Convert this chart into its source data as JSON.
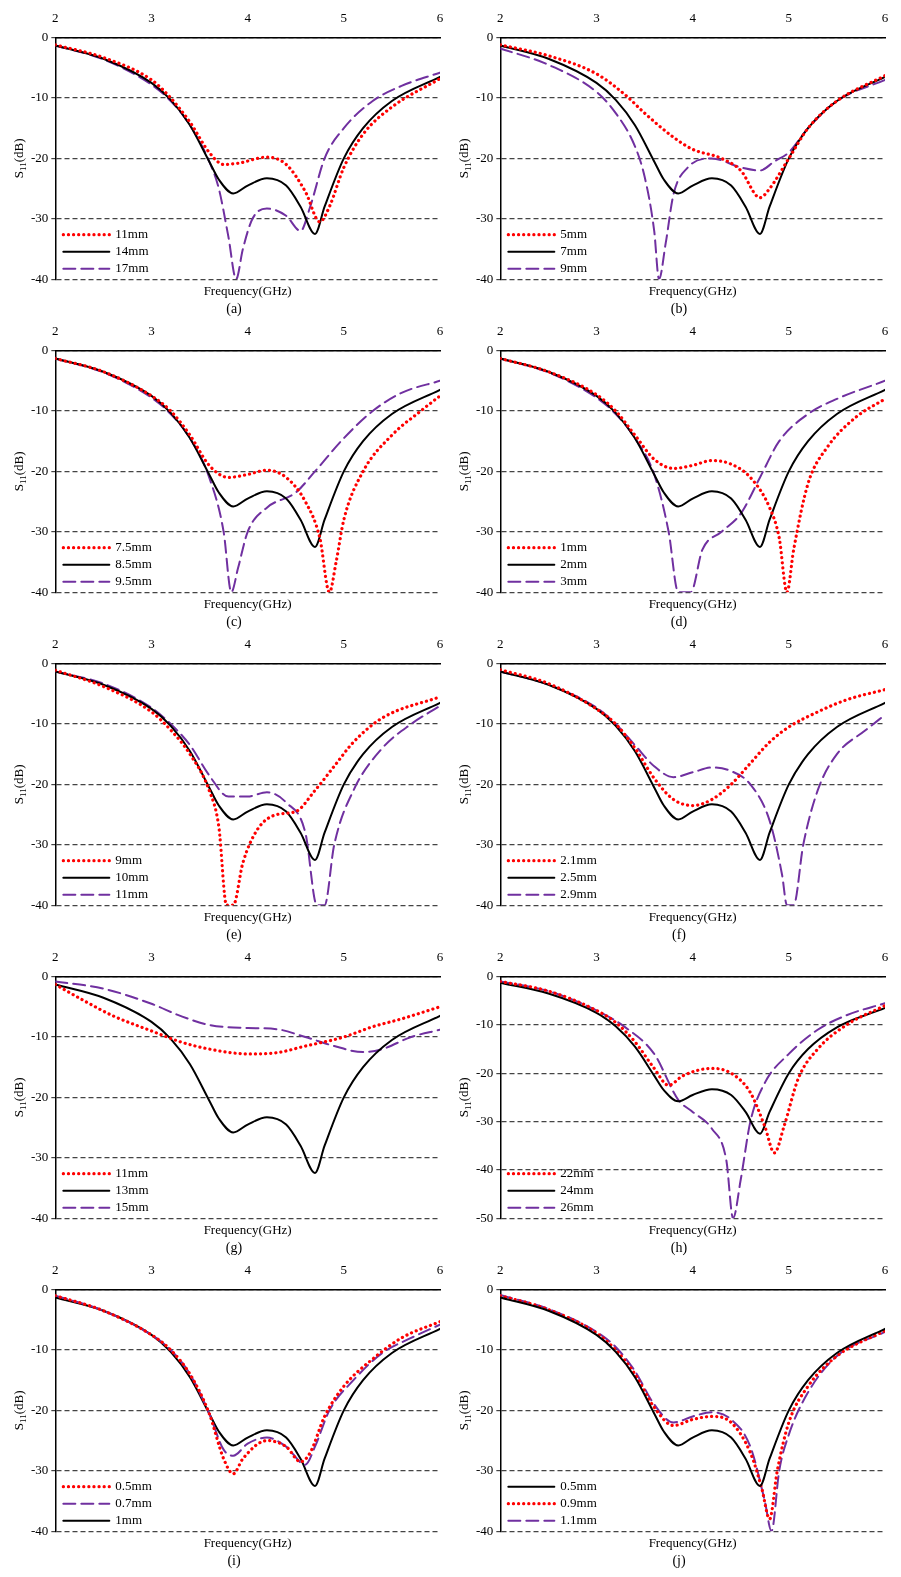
{
  "chart_data": [
    {
      "type": "line",
      "title": "(a)",
      "xlabel": "Frequency(GHz)",
      "ylabel": "S$_{11}$(dB)",
      "xlim": [
        2,
        6
      ],
      "xticks": [
        2,
        3,
        4,
        5,
        6
      ],
      "ylim": [
        -40,
        0
      ],
      "yticks": [
        0,
        -10,
        -20,
        -30,
        -40
      ],
      "grid": "y",
      "legend": "bottom left",
      "series": [
        {
          "name": "11mm",
          "color": "#ff0000",
          "line_style": "dotted",
          "x": [
            2,
            2.5,
            3,
            3.2,
            3.4,
            3.6,
            3.75,
            3.9,
            4.2,
            4.4,
            4.6,
            4.75,
            4.85,
            5,
            5.2,
            5.5,
            6
          ],
          "values": [
            -1.2,
            -3.3,
            -7,
            -10,
            -14,
            -19,
            -21,
            -20.8,
            -19.8,
            -21,
            -25.5,
            -30.5,
            -28,
            -21.5,
            -16,
            -11.5,
            -6.8
          ]
        },
        {
          "name": "14mm",
          "color": "#000000",
          "line_style": "solid",
          "x": [
            2,
            2.5,
            3,
            3.2,
            3.4,
            3.6,
            3.7,
            3.85,
            4,
            4.2,
            4.4,
            4.55,
            4.7,
            4.8,
            5,
            5.2,
            5.5,
            6
          ],
          "values": [
            -1.3,
            -3.5,
            -7.5,
            -10.3,
            -14.5,
            -20.5,
            -23.5,
            -25.8,
            -24.5,
            -23.3,
            -24.5,
            -28,
            -32.5,
            -28,
            -20,
            -15,
            -10.5,
            -6.5
          ]
        },
        {
          "name": "17mm",
          "color": "#7030a0",
          "line_style": "dashed",
          "x": [
            2,
            2.5,
            3,
            3.2,
            3.4,
            3.6,
            3.7,
            3.8,
            3.88,
            3.95,
            4.05,
            4.2,
            4.4,
            4.55,
            4.65,
            4.8,
            5,
            5.3,
            5.6,
            6
          ],
          "values": [
            -1.3,
            -3.6,
            -7.8,
            -10.5,
            -14.5,
            -20.5,
            -25,
            -33,
            -40,
            -35,
            -30,
            -28.3,
            -29.5,
            -32,
            -28,
            -20,
            -15,
            -10.5,
            -8,
            -5.8
          ]
        }
      ]
    },
    {
      "type": "line",
      "title": "(b)",
      "xlabel": "Frequency(GHz)",
      "ylabel": "S$_{11}$(dB)",
      "xlim": [
        2,
        6
      ],
      "xticks": [
        2,
        3,
        4,
        5,
        6
      ],
      "ylim": [
        -40,
        0
      ],
      "yticks": [
        0,
        -10,
        -20,
        -30,
        -40
      ],
      "grid": "y",
      "legend": "bottom left",
      "series": [
        {
          "name": "5mm",
          "color": "#ff0000",
          "line_style": "dotted",
          "x": [
            2,
            2.5,
            3,
            3.3,
            3.5,
            3.8,
            4,
            4.3,
            4.5,
            4.7,
            4.8,
            5,
            5.2,
            5.5,
            6
          ],
          "values": [
            -1.2,
            -3,
            -6,
            -9.5,
            -12.5,
            -16.5,
            -18.5,
            -20,
            -22,
            -26.5,
            -25,
            -20,
            -15,
            -10.5,
            -6.3
          ]
        },
        {
          "name": "7mm",
          "color": "#000000",
          "line_style": "solid",
          "x": [
            2,
            2.5,
            3,
            3.2,
            3.4,
            3.6,
            3.7,
            3.85,
            4,
            4.2,
            4.4,
            4.55,
            4.7,
            4.8,
            5,
            5.2,
            5.5,
            6
          ],
          "values": [
            -1.3,
            -3.5,
            -7.5,
            -10.3,
            -14.5,
            -20.5,
            -23.5,
            -25.8,
            -24.5,
            -23.3,
            -24.5,
            -28,
            -32.5,
            -28,
            -20,
            -15,
            -10.5,
            -6.5
          ]
        },
        {
          "name": "9mm",
          "color": "#7030a0",
          "line_style": "dashed",
          "x": [
            2,
            2.5,
            3,
            3.2,
            3.4,
            3.5,
            3.6,
            3.65,
            3.72,
            3.8,
            3.95,
            4.2,
            4.5,
            4.7,
            4.85,
            5,
            5.2,
            5.5,
            6
          ],
          "values": [
            -1.8,
            -4.5,
            -9,
            -12.5,
            -18,
            -23,
            -32,
            -40,
            -34,
            -26,
            -21.5,
            -20,
            -21.5,
            -22,
            -20.5,
            -19,
            -15,
            -10.5,
            -7
          ]
        }
      ]
    },
    {
      "type": "line",
      "title": "(c)",
      "xlabel": "Frequency(GHz)",
      "ylabel": "S$_{11}$(dB)",
      "xlim": [
        2,
        6
      ],
      "xticks": [
        2,
        3,
        4,
        5,
        6
      ],
      "ylim": [
        -40,
        0
      ],
      "yticks": [
        0,
        -10,
        -20,
        -30,
        -40
      ],
      "grid": "y",
      "legend": "bottom left",
      "series": [
        {
          "name": "7.5mm",
          "color": "#ff0000",
          "line_style": "dotted",
          "x": [
            2,
            2.5,
            3,
            3.2,
            3.4,
            3.6,
            3.8,
            4,
            4.2,
            4.4,
            4.6,
            4.75,
            4.85,
            4.92,
            5,
            5.2,
            5.5,
            5.8,
            6
          ],
          "values": [
            -1.3,
            -3.5,
            -7.5,
            -10,
            -14,
            -19,
            -21,
            -20.5,
            -19.8,
            -21,
            -25,
            -31,
            -40,
            -35,
            -28,
            -20,
            -14,
            -10,
            -7.5
          ]
        },
        {
          "name": "8.5mm",
          "color": "#000000",
          "line_style": "solid",
          "x": [
            2,
            2.5,
            3,
            3.2,
            3.4,
            3.6,
            3.7,
            3.85,
            4,
            4.2,
            4.4,
            4.55,
            4.7,
            4.8,
            5,
            5.2,
            5.5,
            6
          ],
          "values": [
            -1.3,
            -3.5,
            -7.5,
            -10.3,
            -14.5,
            -20.5,
            -23.5,
            -25.8,
            -24.5,
            -23.3,
            -24.5,
            -28,
            -32.5,
            -28,
            -20,
            -15,
            -10.5,
            -6.5
          ]
        },
        {
          "name": "9.5mm",
          "color": "#7030a0",
          "line_style": "dashed",
          "x": [
            2,
            2.5,
            3,
            3.2,
            3.4,
            3.6,
            3.75,
            3.83,
            3.9,
            4,
            4.2,
            4.5,
            4.7,
            5,
            5.3,
            5.6,
            6
          ],
          "values": [
            -1.3,
            -3.6,
            -7.8,
            -10.5,
            -14.5,
            -21,
            -30,
            -40,
            -36,
            -30,
            -26,
            -23.5,
            -20,
            -14.5,
            -10,
            -7,
            -5
          ]
        }
      ]
    },
    {
      "type": "line",
      "title": "(d)",
      "xlabel": "Frequency(GHz)",
      "ylabel": "S$_{11}$(dB)",
      "xlim": [
        2,
        6
      ],
      "xticks": [
        2,
        3,
        4,
        5,
        6
      ],
      "ylim": [
        -40,
        0
      ],
      "yticks": [
        0,
        -10,
        -20,
        -30,
        -40
      ],
      "grid": "y",
      "legend": "bottom left",
      "series": [
        {
          "name": "1mm",
          "color": "#ff0000",
          "line_style": "dotted",
          "x": [
            2,
            2.5,
            3,
            3.2,
            3.4,
            3.6,
            3.8,
            4,
            4.2,
            4.4,
            4.6,
            4.8,
            4.9,
            4.98,
            5.05,
            5.2,
            5.4,
            5.7,
            6
          ],
          "values": [
            -1.3,
            -3.5,
            -7.3,
            -10,
            -14,
            -18,
            -19.5,
            -19,
            -18.2,
            -18.8,
            -21,
            -26,
            -31,
            -40,
            -33,
            -22,
            -16,
            -11,
            -8
          ]
        },
        {
          "name": "2mm",
          "color": "#000000",
          "line_style": "solid",
          "x": [
            2,
            2.5,
            3,
            3.2,
            3.4,
            3.6,
            3.7,
            3.85,
            4,
            4.2,
            4.4,
            4.55,
            4.7,
            4.8,
            5,
            5.2,
            5.5,
            6
          ],
          "values": [
            -1.3,
            -3.5,
            -7.5,
            -10.3,
            -14.5,
            -20.5,
            -23.5,
            -25.8,
            -24.5,
            -23.3,
            -24.5,
            -28,
            -32.5,
            -28,
            -20,
            -15,
            -10.5,
            -6.5
          ]
        },
        {
          "name": "3mm",
          "color": "#7030a0",
          "line_style": "dashed",
          "x": [
            2,
            2.5,
            3,
            3.2,
            3.4,
            3.6,
            3.75,
            3.85,
            3.98,
            4.1,
            4.3,
            4.5,
            4.7,
            4.9,
            5.2,
            5.5,
            6
          ],
          "values": [
            -1.3,
            -3.6,
            -7.8,
            -10.5,
            -14.5,
            -20.5,
            -30,
            -40,
            -40,
            -33,
            -30,
            -27,
            -21,
            -15,
            -10.5,
            -8,
            -5
          ]
        }
      ]
    },
    {
      "type": "line",
      "title": "(e)",
      "xlabel": "Frequency(GHz)",
      "ylabel": "S$_{11}$(dB)",
      "xlim": [
        2,
        6
      ],
      "xticks": [
        2,
        3,
        4,
        5,
        6
      ],
      "ylim": [
        -40,
        0
      ],
      "yticks": [
        0,
        -10,
        -20,
        -30,
        -40
      ],
      "grid": "y",
      "legend": "bottom left",
      "series": [
        {
          "name": "9mm",
          "color": "#ff0000",
          "line_style": "dotted",
          "x": [
            2,
            2.5,
            3,
            3.2,
            3.4,
            3.6,
            3.7,
            3.78,
            3.85,
            3.95,
            4.1,
            4.3,
            4.5,
            4.7,
            4.9,
            5.1,
            5.4,
            6
          ],
          "values": [
            -1.1,
            -3.8,
            -8,
            -11,
            -15,
            -21,
            -27,
            -40,
            -40,
            -33,
            -27.5,
            -25,
            -24.5,
            -21,
            -17,
            -13,
            -9,
            -5.5
          ]
        },
        {
          "name": "10mm",
          "color": "#000000",
          "line_style": "solid",
          "x": [
            2,
            2.5,
            3,
            3.2,
            3.4,
            3.6,
            3.7,
            3.85,
            4,
            4.2,
            4.4,
            4.55,
            4.7,
            4.8,
            5,
            5.2,
            5.5,
            6
          ],
          "values": [
            -1.3,
            -3.5,
            -7.5,
            -10.3,
            -14.5,
            -20.5,
            -23.5,
            -25.8,
            -24.5,
            -23.3,
            -24.5,
            -28,
            -32.5,
            -28,
            -20,
            -15,
            -10.5,
            -6.5
          ]
        },
        {
          "name": "11mm",
          "color": "#7030a0",
          "line_style": "dashed",
          "x": [
            2,
            2.5,
            3,
            3.2,
            3.4,
            3.6,
            3.8,
            4,
            4.2,
            4.4,
            4.6,
            4.72,
            4.8,
            4.9,
            5.1,
            5.4,
            5.7,
            6
          ],
          "values": [
            -1.3,
            -3.3,
            -7.3,
            -10,
            -13.5,
            -18.5,
            -22,
            -22,
            -21.3,
            -23,
            -28,
            -40,
            -40,
            -30,
            -21,
            -14,
            -10,
            -7
          ]
        }
      ]
    },
    {
      "type": "line",
      "title": "(f)",
      "xlabel": "Frequency(GHz)",
      "ylabel": "S$_{11}$(dB)",
      "xlim": [
        2,
        6
      ],
      "xticks": [
        2,
        3,
        4,
        5,
        6
      ],
      "ylim": [
        -40,
        0
      ],
      "yticks": [
        0,
        -10,
        -20,
        -30,
        -40
      ],
      "grid": "y",
      "legend": "bottom left",
      "series": [
        {
          "name": "2.1mm",
          "color": "#ff0000",
          "line_style": "dotted",
          "x": [
            2,
            2.5,
            3,
            3.2,
            3.4,
            3.6,
            3.8,
            4,
            4.2,
            4.4,
            4.6,
            4.8,
            5,
            5.3,
            5.6,
            6
          ],
          "values": [
            -1,
            -3.3,
            -7.5,
            -10,
            -14,
            -19,
            -22.5,
            -23.5,
            -22.5,
            -20,
            -16.5,
            -13,
            -10.5,
            -8,
            -6,
            -4.3
          ]
        },
        {
          "name": "2.5mm",
          "color": "#000000",
          "line_style": "solid",
          "x": [
            2,
            2.5,
            3,
            3.2,
            3.4,
            3.6,
            3.7,
            3.85,
            4,
            4.2,
            4.4,
            4.55,
            4.7,
            4.8,
            5,
            5.2,
            5.5,
            6
          ],
          "values": [
            -1.3,
            -3.5,
            -7.5,
            -10.3,
            -14.5,
            -20.5,
            -23.5,
            -25.8,
            -24.5,
            -23.3,
            -24.5,
            -28,
            -32.5,
            -28,
            -20,
            -15,
            -10.5,
            -6.5
          ]
        },
        {
          "name": "2.9mm",
          "color": "#7030a0",
          "line_style": "dashed",
          "x": [
            2,
            2.5,
            3,
            3.2,
            3.4,
            3.6,
            3.8,
            4,
            4.2,
            4.4,
            4.6,
            4.8,
            4.93,
            4.98,
            5.05,
            5.15,
            5.3,
            5.5,
            5.8,
            6
          ],
          "values": [
            -1.3,
            -3.5,
            -7.3,
            -10,
            -13.5,
            -17,
            -18.8,
            -18,
            -17.2,
            -17.8,
            -20,
            -26,
            -35,
            -40,
            -40,
            -30,
            -21,
            -15,
            -11,
            -8.5
          ]
        }
      ]
    },
    {
      "type": "line",
      "title": "(g)",
      "xlabel": "Frequency(GHz)",
      "ylabel": "S$_{11}$(dB)",
      "xlim": [
        2,
        6
      ],
      "xticks": [
        2,
        3,
        4,
        5,
        6
      ],
      "ylim": [
        -40,
        0
      ],
      "yticks": [
        0,
        -10,
        -20,
        -30,
        -40
      ],
      "grid": "y",
      "legend": "bottom left",
      "series": [
        {
          "name": "11mm",
          "color": "#ff0000",
          "line_style": "dotted",
          "x": [
            2,
            2.3,
            2.6,
            3,
            3.3,
            3.6,
            4,
            4.3,
            4.6,
            5,
            5.3,
            5.6,
            6
          ],
          "values": [
            -1.3,
            -4,
            -6.5,
            -9,
            -10.8,
            -12,
            -12.8,
            -12.6,
            -11.5,
            -10,
            -8.3,
            -7,
            -5
          ]
        },
        {
          "name": "13mm",
          "color": "#000000",
          "line_style": "solid",
          "x": [
            2,
            2.5,
            3,
            3.2,
            3.4,
            3.6,
            3.7,
            3.85,
            4,
            4.2,
            4.4,
            4.55,
            4.7,
            4.8,
            5,
            5.2,
            5.5,
            6
          ],
          "values": [
            -1.3,
            -3.5,
            -7.5,
            -10.3,
            -14.5,
            -20.5,
            -23.5,
            -25.8,
            -24.5,
            -23.3,
            -24.5,
            -28,
            -32.5,
            -28,
            -20,
            -15,
            -10.5,
            -6.5
          ]
        },
        {
          "name": "15mm",
          "color": "#7030a0",
          "line_style": "dashed",
          "x": [
            2,
            2.5,
            3,
            3.3,
            3.6,
            4,
            4.3,
            4.6,
            4.9,
            5.2,
            5.4,
            5.7,
            6
          ],
          "values": [
            -0.8,
            -2,
            -4.5,
            -6.5,
            -8,
            -8.5,
            -8.7,
            -10,
            -11.5,
            -12.5,
            -12,
            -10,
            -8.8
          ]
        }
      ]
    },
    {
      "type": "line",
      "title": "(h)",
      "xlabel": "Frequency(GHz)",
      "ylabel": "S$_{11}$(dB)",
      "xlim": [
        2,
        6
      ],
      "xticks": [
        2,
        3,
        4,
        5,
        6
      ],
      "ylim": [
        -50,
        0
      ],
      "yticks": [
        0,
        -10,
        -20,
        -30,
        -40,
        -50
      ],
      "grid": "y",
      "legend": "bottom left",
      "series": [
        {
          "name": "22mm",
          "color": "#ff0000",
          "line_style": "dotted",
          "x": [
            2,
            2.5,
            3,
            3.2,
            3.4,
            3.6,
            3.75,
            3.9,
            4.2,
            4.4,
            4.6,
            4.75,
            4.85,
            4.95,
            5.1,
            5.3,
            5.6,
            6
          ],
          "values": [
            -1,
            -3,
            -7,
            -9.5,
            -13.5,
            -19,
            -22.5,
            -20.5,
            -19,
            -20,
            -24,
            -31,
            -36.5,
            -31,
            -21,
            -15,
            -10,
            -6
          ]
        },
        {
          "name": "24mm",
          "color": "#000000",
          "line_style": "solid",
          "x": [
            2,
            2.5,
            3,
            3.2,
            3.4,
            3.6,
            3.7,
            3.85,
            4,
            4.2,
            4.4,
            4.55,
            4.7,
            4.8,
            5,
            5.2,
            5.5,
            6
          ],
          "values": [
            -1.3,
            -3.5,
            -7.5,
            -10.3,
            -14.5,
            -20.5,
            -23.5,
            -25.8,
            -24.5,
            -23.3,
            -24.5,
            -28,
            -32.5,
            -28,
            -20,
            -15,
            -10.5,
            -6.5
          ]
        },
        {
          "name": "26mm",
          "color": "#7030a0",
          "line_style": "dashed",
          "x": [
            2,
            2.5,
            3,
            3.3,
            3.6,
            3.85,
            4,
            4.2,
            4.35,
            4.42,
            4.5,
            4.6,
            4.75,
            5,
            5.3,
            5.6,
            6
          ],
          "values": [
            -1,
            -3,
            -7,
            -10.5,
            -16,
            -25.5,
            -28,
            -31.5,
            -38,
            -50,
            -42,
            -30,
            -22,
            -16,
            -11,
            -8,
            -5.5
          ]
        }
      ]
    },
    {
      "type": "line",
      "title": "(i)",
      "xlabel": "Frequency(GHz)",
      "ylabel": "S$_{11}$(dB)",
      "xlim": [
        2,
        6
      ],
      "xticks": [
        2,
        3,
        4,
        5,
        6
      ],
      "ylim": [
        -40,
        0
      ],
      "yticks": [
        0,
        -10,
        -20,
        -30,
        -40
      ],
      "grid": "y",
      "legend": "bottom left",
      "series": [
        {
          "name": "0.5mm",
          "color": "#ff0000",
          "line_style": "dotted",
          "x": [
            2,
            2.5,
            3,
            3.2,
            3.4,
            3.6,
            3.75,
            3.85,
            3.95,
            4.2,
            4.4,
            4.55,
            4.65,
            4.8,
            5,
            5.3,
            5.6,
            6
          ],
          "values": [
            -1,
            -3.5,
            -7.5,
            -10,
            -14,
            -20.5,
            -28,
            -30.5,
            -28,
            -25,
            -26,
            -28.5,
            -27,
            -21,
            -16,
            -11.5,
            -8,
            -5.3
          ]
        },
        {
          "name": "0.7mm",
          "color": "#7030a0",
          "line_style": "dashed",
          "x": [
            2,
            2.5,
            3,
            3.2,
            3.4,
            3.6,
            3.75,
            3.85,
            4,
            4.2,
            4.4,
            4.6,
            4.7,
            4.85,
            5.1,
            5.4,
            5.7,
            6
          ],
          "values": [
            -1,
            -3.5,
            -7.5,
            -10,
            -14,
            -20.5,
            -26.5,
            -27.5,
            -25.5,
            -24.5,
            -26,
            -29,
            -26,
            -20,
            -15,
            -10.5,
            -8,
            -5.8
          ]
        },
        {
          "name": "1mm",
          "color": "#000000",
          "line_style": "solid",
          "x": [
            2,
            2.5,
            3,
            3.2,
            3.4,
            3.6,
            3.7,
            3.85,
            4,
            4.2,
            4.4,
            4.55,
            4.7,
            4.8,
            5,
            5.2,
            5.5,
            6
          ],
          "values": [
            -1.3,
            -3.5,
            -7.5,
            -10.3,
            -14.5,
            -20.5,
            -23.5,
            -25.8,
            -24.5,
            -23.3,
            -24.5,
            -28,
            -32.5,
            -28,
            -20,
            -15,
            -10.5,
            -6.5
          ]
        }
      ]
    },
    {
      "type": "line",
      "title": "(j)",
      "xlabel": "Frequency(GHz)",
      "ylabel": "S$_{11}$(dB)",
      "xlim": [
        2,
        6
      ],
      "xticks": [
        2,
        3,
        4,
        5,
        6
      ],
      "ylim": [
        -40,
        0
      ],
      "yticks": [
        0,
        -10,
        -20,
        -30,
        -40
      ],
      "grid": "y",
      "legend": "bottom left",
      "series": [
        {
          "name": "0.5mm",
          "color": "#000000",
          "line_style": "solid",
          "x": [
            2,
            2.5,
            3,
            3.2,
            3.4,
            3.6,
            3.7,
            3.85,
            4,
            4.2,
            4.4,
            4.55,
            4.7,
            4.8,
            5,
            5.2,
            5.5,
            6
          ],
          "values": [
            -1.3,
            -3.5,
            -7.5,
            -10.3,
            -14.5,
            -20.5,
            -23.5,
            -25.8,
            -24.5,
            -23.3,
            -24.5,
            -28,
            -32.5,
            -28,
            -20,
            -15,
            -10.5,
            -6.5
          ]
        },
        {
          "name": "0.9mm",
          "color": "#ff0000",
          "line_style": "dotted",
          "x": [
            2,
            2.5,
            3,
            3.2,
            3.4,
            3.6,
            3.8,
            4,
            4.2,
            4.4,
            4.6,
            4.72,
            4.8,
            4.88,
            5,
            5.2,
            5.5,
            6
          ],
          "values": [
            -1,
            -3.3,
            -7.2,
            -10,
            -14,
            -19.5,
            -22.5,
            -21.5,
            -21,
            -22,
            -27,
            -33,
            -38,
            -30,
            -22,
            -16,
            -11,
            -6.8
          ]
        },
        {
          "name": "1.1mm",
          "color": "#7030a0",
          "line_style": "dashed",
          "x": [
            2,
            2.5,
            3,
            3.2,
            3.4,
            3.6,
            3.8,
            4,
            4.2,
            4.4,
            4.6,
            4.75,
            4.82,
            4.9,
            5,
            5.2,
            5.5,
            6
          ],
          "values": [
            -0.9,
            -3.2,
            -7,
            -9.5,
            -13.5,
            -19,
            -22,
            -21,
            -20.3,
            -21.5,
            -26,
            -35,
            -40,
            -30,
            -24,
            -17,
            -11,
            -7
          ]
        }
      ]
    }
  ]
}
